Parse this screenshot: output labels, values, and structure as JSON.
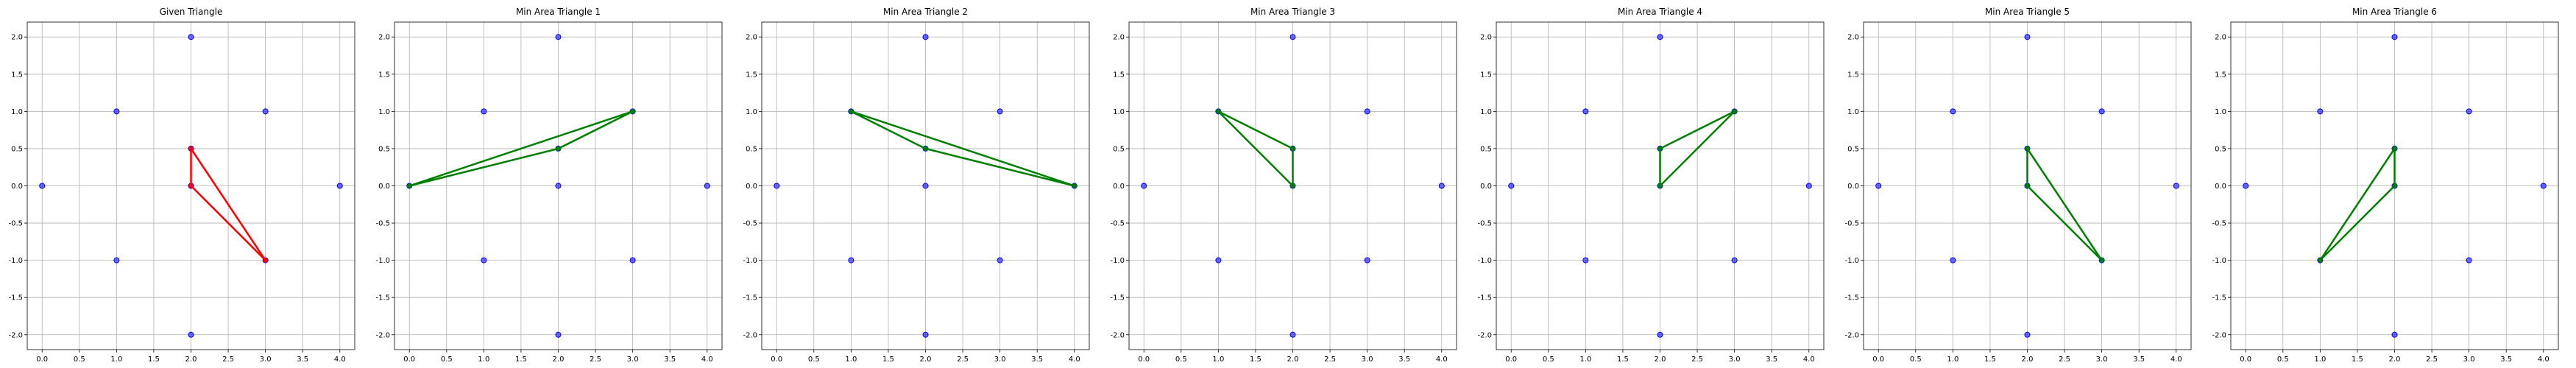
{
  "chart_data": [
    {
      "type": "scatter",
      "title": "Given Triangle",
      "xlim": [
        -0.2,
        4.2
      ],
      "ylim": [
        -2.2,
        2.2
      ],
      "xticks": [
        0.0,
        0.5,
        1.0,
        1.5,
        2.0,
        2.5,
        3.0,
        3.5,
        4.0
      ],
      "yticks": [
        -2.0,
        -1.5,
        -1.0,
        -0.5,
        0.0,
        0.5,
        1.0,
        1.5,
        2.0
      ],
      "grid": true,
      "points": [
        [
          0,
          0
        ],
        [
          1,
          1
        ],
        [
          1,
          -1
        ],
        [
          2,
          2
        ],
        [
          2,
          0.5
        ],
        [
          2,
          0
        ],
        [
          2,
          -2
        ],
        [
          3,
          1
        ],
        [
          3,
          -1
        ],
        [
          4,
          0
        ]
      ],
      "point_color": "#0000ff",
      "triangle": [
        [
          2,
          0.5
        ],
        [
          2,
          0
        ],
        [
          3,
          -1
        ]
      ],
      "triangle_color": "#ff0000"
    },
    {
      "type": "scatter",
      "title": "Min Area Triangle 1",
      "xlim": [
        -0.2,
        4.2
      ],
      "ylim": [
        -2.2,
        2.2
      ],
      "xticks": [
        0.0,
        0.5,
        1.0,
        1.5,
        2.0,
        2.5,
        3.0,
        3.5,
        4.0
      ],
      "yticks": [
        -2.0,
        -1.5,
        -1.0,
        -0.5,
        0.0,
        0.5,
        1.0,
        1.5,
        2.0
      ],
      "grid": true,
      "points": [
        [
          0,
          0
        ],
        [
          1,
          1
        ],
        [
          1,
          -1
        ],
        [
          2,
          2
        ],
        [
          2,
          0.5
        ],
        [
          2,
          0
        ],
        [
          2,
          -2
        ],
        [
          3,
          1
        ],
        [
          3,
          -1
        ],
        [
          4,
          0
        ]
      ],
      "point_color": "#0000ff",
      "triangle": [
        [
          0,
          0
        ],
        [
          3,
          1
        ],
        [
          2,
          0.5
        ]
      ],
      "triangle_color": "#008000"
    },
    {
      "type": "scatter",
      "title": "Min Area Triangle 2",
      "xlim": [
        -0.2,
        4.2
      ],
      "ylim": [
        -2.2,
        2.2
      ],
      "xticks": [
        0.0,
        0.5,
        1.0,
        1.5,
        2.0,
        2.5,
        3.0,
        3.5,
        4.0
      ],
      "yticks": [
        -2.0,
        -1.5,
        -1.0,
        -0.5,
        0.0,
        0.5,
        1.0,
        1.5,
        2.0
      ],
      "grid": true,
      "points": [
        [
          0,
          0
        ],
        [
          1,
          1
        ],
        [
          1,
          -1
        ],
        [
          2,
          2
        ],
        [
          2,
          0.5
        ],
        [
          2,
          0
        ],
        [
          2,
          -2
        ],
        [
          3,
          1
        ],
        [
          3,
          -1
        ],
        [
          4,
          0
        ]
      ],
      "point_color": "#0000ff",
      "triangle": [
        [
          1,
          1
        ],
        [
          4,
          0
        ],
        [
          2,
          0.5
        ]
      ],
      "triangle_color": "#008000"
    },
    {
      "type": "scatter",
      "title": "Min Area Triangle 3",
      "xlim": [
        -0.2,
        4.2
      ],
      "ylim": [
        -2.2,
        2.2
      ],
      "xticks": [
        0.0,
        0.5,
        1.0,
        1.5,
        2.0,
        2.5,
        3.0,
        3.5,
        4.0
      ],
      "yticks": [
        -2.0,
        -1.5,
        -1.0,
        -0.5,
        0.0,
        0.5,
        1.0,
        1.5,
        2.0
      ],
      "grid": true,
      "points": [
        [
          0,
          0
        ],
        [
          1,
          1
        ],
        [
          1,
          -1
        ],
        [
          2,
          2
        ],
        [
          2,
          0.5
        ],
        [
          2,
          0
        ],
        [
          2,
          -2
        ],
        [
          3,
          1
        ],
        [
          3,
          -1
        ],
        [
          4,
          0
        ]
      ],
      "point_color": "#0000ff",
      "triangle": [
        [
          1,
          1
        ],
        [
          2,
          0.5
        ],
        [
          2,
          0
        ]
      ],
      "triangle_color": "#008000"
    },
    {
      "type": "scatter",
      "title": "Min Area Triangle 4",
      "xlim": [
        -0.2,
        4.2
      ],
      "ylim": [
        -2.2,
        2.2
      ],
      "xticks": [
        0.0,
        0.5,
        1.0,
        1.5,
        2.0,
        2.5,
        3.0,
        3.5,
        4.0
      ],
      "yticks": [
        -2.0,
        -1.5,
        -1.0,
        -0.5,
        0.0,
        0.5,
        1.0,
        1.5,
        2.0
      ],
      "grid": true,
      "points": [
        [
          0,
          0
        ],
        [
          1,
          1
        ],
        [
          1,
          -1
        ],
        [
          2,
          2
        ],
        [
          2,
          0.5
        ],
        [
          2,
          0
        ],
        [
          2,
          -2
        ],
        [
          3,
          1
        ],
        [
          3,
          -1
        ],
        [
          4,
          0
        ]
      ],
      "point_color": "#0000ff",
      "triangle": [
        [
          2,
          0.5
        ],
        [
          3,
          1
        ],
        [
          2,
          0
        ]
      ],
      "triangle_color": "#008000"
    },
    {
      "type": "scatter",
      "title": "Min Area Triangle 5",
      "xlim": [
        -0.2,
        4.2
      ],
      "ylim": [
        -2.2,
        2.2
      ],
      "xticks": [
        0.0,
        0.5,
        1.0,
        1.5,
        2.0,
        2.5,
        3.0,
        3.5,
        4.0
      ],
      "yticks": [
        -2.0,
        -1.5,
        -1.0,
        -0.5,
        0.0,
        0.5,
        1.0,
        1.5,
        2.0
      ],
      "grid": true,
      "points": [
        [
          0,
          0
        ],
        [
          1,
          1
        ],
        [
          1,
          -1
        ],
        [
          2,
          2
        ],
        [
          2,
          0.5
        ],
        [
          2,
          0
        ],
        [
          2,
          -2
        ],
        [
          3,
          1
        ],
        [
          3,
          -1
        ],
        [
          4,
          0
        ]
      ],
      "point_color": "#0000ff",
      "triangle": [
        [
          2,
          0.5
        ],
        [
          2,
          0
        ],
        [
          3,
          -1
        ]
      ],
      "triangle_color": "#008000"
    },
    {
      "type": "scatter",
      "title": "Min Area Triangle 6",
      "xlim": [
        -0.2,
        4.2
      ],
      "ylim": [
        -2.2,
        2.2
      ],
      "xticks": [
        0.0,
        0.5,
        1.0,
        1.5,
        2.0,
        2.5,
        3.0,
        3.5,
        4.0
      ],
      "yticks": [
        -2.0,
        -1.5,
        -1.0,
        -0.5,
        0.0,
        0.5,
        1.0,
        1.5,
        2.0
      ],
      "grid": true,
      "points": [
        [
          0,
          0
        ],
        [
          1,
          1
        ],
        [
          1,
          -1
        ],
        [
          2,
          2
        ],
        [
          2,
          0.5
        ],
        [
          2,
          0
        ],
        [
          2,
          -2
        ],
        [
          3,
          1
        ],
        [
          3,
          -1
        ],
        [
          4,
          0
        ]
      ],
      "point_color": "#0000ff",
      "triangle": [
        [
          2,
          0.5
        ],
        [
          2,
          0
        ],
        [
          1,
          -1
        ]
      ],
      "triangle_color": "#008000"
    }
  ]
}
